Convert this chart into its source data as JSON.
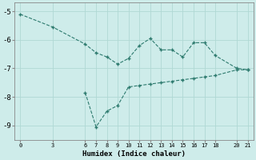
{
  "line1_x": [
    0,
    3,
    6,
    7,
    8,
    9,
    10,
    11,
    12,
    13,
    14,
    15,
    16,
    17,
    18,
    20,
    21
  ],
  "line1_y": [
    -5.1,
    -5.55,
    -6.15,
    -6.45,
    -6.6,
    -6.85,
    -6.65,
    -6.2,
    -5.95,
    -6.35,
    -6.35,
    -6.6,
    -6.1,
    -6.1,
    -6.55,
    -7.0,
    -7.05
  ],
  "line2_x": [
    6,
    7,
    8,
    9,
    10,
    11,
    12,
    13,
    14,
    15,
    16,
    17,
    18,
    20,
    21
  ],
  "line2_y": [
    -7.85,
    -9.05,
    -8.5,
    -8.3,
    -7.65,
    -7.6,
    -7.55,
    -7.5,
    -7.45,
    -7.4,
    -7.35,
    -7.3,
    -7.25,
    -7.05,
    -7.05
  ],
  "line_color": "#2d7a6e",
  "bg_color": "#ceecea",
  "grid_color": "#b0d8d4",
  "xlabel": "Humidex (Indice chaleur)",
  "xticks": [
    0,
    3,
    6,
    7,
    8,
    9,
    10,
    11,
    12,
    13,
    14,
    15,
    16,
    17,
    18,
    20,
    21
  ],
  "yticks": [
    -9,
    -8,
    -7,
    -6,
    -5
  ],
  "ylim": [
    -9.5,
    -4.7
  ],
  "xlim": [
    -0.5,
    21.5
  ]
}
